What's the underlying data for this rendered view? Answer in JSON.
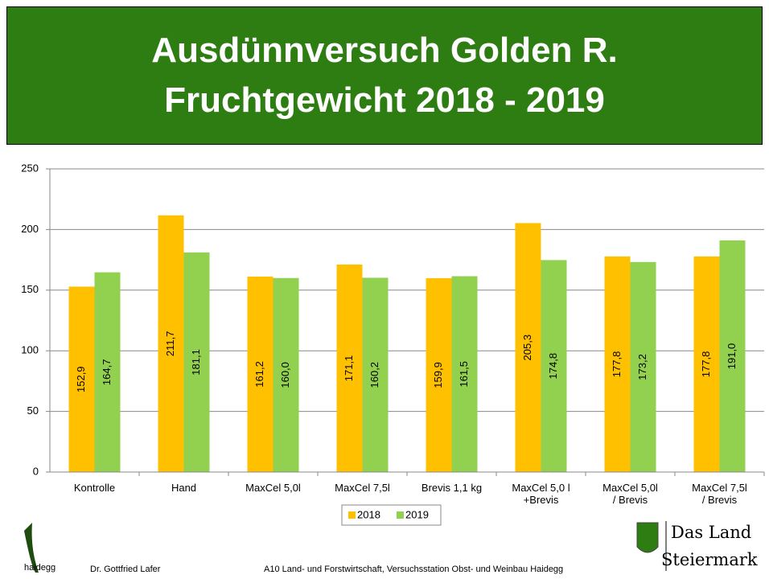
{
  "chart_data": {
    "type": "bar",
    "title": "Ausdünnversuch Golden R.\nFruchtgewicht 2018 - 2019",
    "categories": [
      "Kontrolle",
      "Hand",
      "MaxCel 5,0l",
      "MaxCel 7,5l",
      "Brevis 1,1 kg",
      "MaxCel 5,0 l\n+Brevis",
      "MaxCel 5,0l\n/ Brevis",
      "MaxCel 7,5l\n/ Brevis"
    ],
    "series": [
      {
        "name": "2018",
        "color": "#ffc000",
        "values": [
          152.9,
          211.7,
          161.2,
          171.1,
          159.9,
          205.3,
          177.8,
          177.8
        ],
        "value_labels": [
          "152,9",
          "211,7",
          "161,2",
          "171,1",
          "159,9",
          "205,3",
          "177,8",
          "177,8"
        ]
      },
      {
        "name": "2019",
        "color": "#92d050",
        "values": [
          164.7,
          181.1,
          160.0,
          160.2,
          161.5,
          174.8,
          173.2,
          191.0
        ],
        "value_labels": [
          "164,7",
          "181,1",
          "160,0",
          "160,2",
          "161,5",
          "174,8",
          "173,2",
          "191,0"
        ]
      }
    ],
    "ylim": [
      0,
      250
    ],
    "yticks": [
      0,
      50,
      100,
      150,
      200,
      250
    ],
    "grid": true,
    "legend": "bottom"
  },
  "footer": {
    "logo_text": "haidegg",
    "author": "Dr. Gottfried Lafer",
    "institution": "A10 Land- und Forstwirtschaft, Versuchsstation Obst- und Weinbau Haidegg",
    "brand_line1": "Das Land",
    "brand_line2": "Steiermark"
  }
}
